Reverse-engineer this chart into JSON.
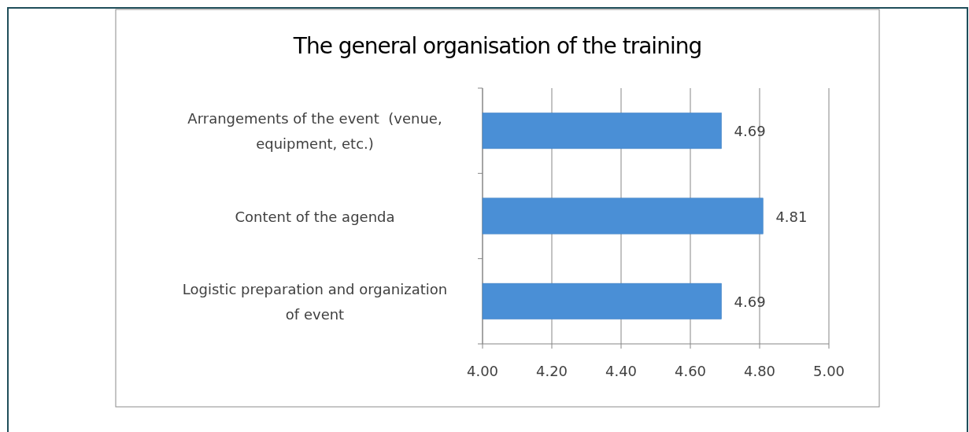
{
  "chart_data": {
    "type": "bar",
    "orientation": "horizontal",
    "title": "The general organisation of the training",
    "categories": [
      "Arrangements of the event  (venue, equipment, etc.)",
      "Content of the agenda",
      "Logistic preparation and organization of event"
    ],
    "values": [
      4.69,
      4.81,
      4.69
    ],
    "color": "#4a8fd6",
    "xlim": [
      4,
      5
    ],
    "xticks": [
      {
        "value": 4,
        "label": "4.00"
      },
      {
        "value": 4.2,
        "label": "4.20"
      },
      {
        "value": 4.4,
        "label": "4.40"
      },
      {
        "value": 4.6,
        "label": "4.60"
      },
      {
        "value": 4.8,
        "label": "4.80"
      },
      {
        "value": 5,
        "label": "5.00"
      }
    ],
    "grid": "x",
    "data_labels": true
  }
}
